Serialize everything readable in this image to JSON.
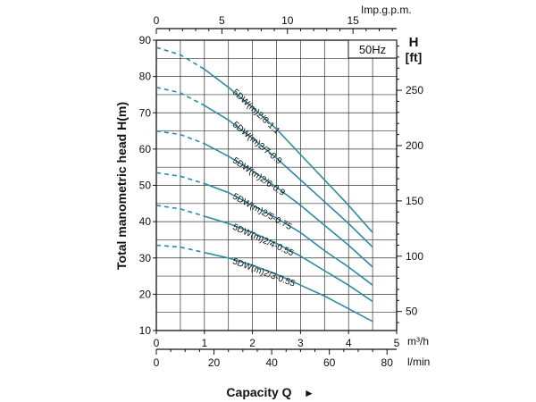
{
  "chart_data": {
    "type": "line",
    "frequency_label": "50Hz",
    "ylabel_left": "Total manometric head H(m)",
    "ylabel_right_top": "H",
    "ylabel_right_unit": "[ft]",
    "xlabel": "Capacity Q",
    "xlabel_arrow": "►",
    "top_axis_unit": "Imp.g.p.m.",
    "bottom_axis_unit_m3h": "m³/h",
    "bottom_axis_unit_lmin": "l/min",
    "x_m3h_range": [
      0,
      5
    ],
    "y_m_range": [
      10,
      90
    ],
    "x_m3h_ticks": [
      "0",
      "1",
      "2",
      "3",
      "4",
      "5"
    ],
    "x_lmin_ticks": [
      "0",
      "20",
      "40",
      "60",
      "80"
    ],
    "x_impgpm_ticks": [
      "0",
      "5",
      "10",
      "15"
    ],
    "y_m_ticks": [
      "10",
      "20",
      "30",
      "40",
      "50",
      "60",
      "70",
      "80",
      "90"
    ],
    "y_ft_ticks": [
      "50",
      "100",
      "150",
      "200",
      "250"
    ],
    "series": [
      {
        "name": "5DW(m)2/8-1.1",
        "dashed": [
          [
            0,
            88
          ],
          [
            0.5,
            86
          ],
          [
            1,
            82
          ]
        ],
        "solid": [
          [
            1,
            82
          ],
          [
            1.5,
            77
          ],
          [
            2,
            71.5
          ],
          [
            2.5,
            65.5
          ],
          [
            3,
            58.5
          ],
          [
            3.5,
            51.5
          ],
          [
            4,
            44.5
          ],
          [
            4.5,
            37
          ]
        ]
      },
      {
        "name": "5DW(m)2/7-0.9",
        "dashed": [
          [
            0,
            77
          ],
          [
            0.5,
            75.5
          ],
          [
            1,
            72
          ]
        ],
        "solid": [
          [
            1,
            72
          ],
          [
            1.5,
            68
          ],
          [
            2,
            63
          ],
          [
            2.5,
            57.5
          ],
          [
            3,
            51.5
          ],
          [
            3.5,
            45.5
          ],
          [
            4,
            39.5
          ],
          [
            4.5,
            33
          ]
        ]
      },
      {
        "name": "5DW(m)2/6-0.9",
        "dashed": [
          [
            0,
            65
          ],
          [
            0.5,
            64
          ],
          [
            1,
            61.5
          ]
        ],
        "solid": [
          [
            1,
            61.5
          ],
          [
            1.5,
            58
          ],
          [
            2,
            54
          ],
          [
            2.5,
            49.5
          ],
          [
            3,
            44.5
          ],
          [
            3.5,
            39
          ],
          [
            4,
            33.5
          ],
          [
            4.5,
            27.5
          ]
        ]
      },
      {
        "name": "5DW(m)2/5-0.75",
        "dashed": [
          [
            0,
            53.5
          ],
          [
            0.5,
            52.5
          ],
          [
            1,
            50.5
          ]
        ],
        "solid": [
          [
            1,
            50.5
          ],
          [
            1.5,
            48
          ],
          [
            2,
            44.5
          ],
          [
            2.5,
            41
          ],
          [
            3,
            37
          ],
          [
            3.5,
            32
          ],
          [
            4,
            27.5
          ],
          [
            4.5,
            22.5
          ]
        ]
      },
      {
        "name": "5DW(m)2/4-0.55",
        "dashed": [
          [
            0,
            44.5
          ],
          [
            0.5,
            43.5
          ],
          [
            1,
            41.5
          ]
        ],
        "solid": [
          [
            1,
            41.5
          ],
          [
            1.5,
            39.5
          ],
          [
            2,
            37
          ],
          [
            2.5,
            34
          ],
          [
            3,
            30.5
          ],
          [
            3.5,
            26.5
          ],
          [
            4,
            22.5
          ],
          [
            4.5,
            18
          ]
        ]
      },
      {
        "name": "5DW(m)2/3-0.55",
        "dashed": [
          [
            0,
            33.5
          ],
          [
            0.5,
            33
          ],
          [
            1,
            31.5
          ]
        ],
        "solid": [
          [
            1,
            31.5
          ],
          [
            1.5,
            30
          ],
          [
            2,
            28
          ],
          [
            2.5,
            25.5
          ],
          [
            3,
            22.5
          ],
          [
            3.5,
            19.5
          ],
          [
            4,
            16
          ],
          [
            4.5,
            12.5
          ]
        ]
      }
    ],
    "curve_color": "#2a8ca3",
    "grid": true
  }
}
